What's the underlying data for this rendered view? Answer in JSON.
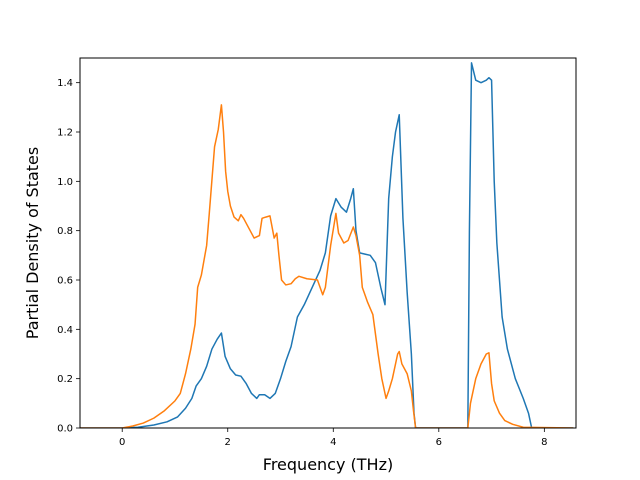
{
  "chart_data": {
    "type": "line",
    "title": "",
    "xlabel": "Frequency (THz)",
    "ylabel": "Partial Density of States",
    "xlim": [
      -0.8,
      8.6
    ],
    "ylim": [
      0.0,
      1.5
    ],
    "xticks": [
      0,
      2,
      4,
      6,
      8
    ],
    "yticks": [
      0.0,
      0.2,
      0.4,
      0.6,
      0.8,
      1.0,
      1.2,
      1.4
    ],
    "grid": false,
    "legend": "none",
    "series": [
      {
        "color": "#1f77b4",
        "x": [
          -0.8,
          0.0,
          0.3,
          0.6,
          0.85,
          1.05,
          1.2,
          1.32,
          1.4,
          1.5,
          1.6,
          1.7,
          1.8,
          1.88,
          1.95,
          2.05,
          2.15,
          2.25,
          2.35,
          2.45,
          2.55,
          2.6,
          2.7,
          2.8,
          2.9,
          3.0,
          3.1,
          3.2,
          3.32,
          3.45,
          3.6,
          3.75,
          3.85,
          3.95,
          4.05,
          4.15,
          4.25,
          4.33,
          4.38,
          4.43,
          4.5,
          4.6,
          4.7,
          4.8,
          4.9,
          4.98,
          5.05,
          5.12,
          5.18,
          5.25,
          5.32,
          5.4,
          5.48,
          5.53,
          5.56,
          6.55,
          6.58,
          6.62,
          6.7,
          6.8,
          6.9,
          6.95,
          7.0,
          7.05,
          7.1,
          7.2,
          7.3,
          7.45,
          7.6,
          7.7,
          7.76,
          8.55
        ],
        "y": [
          0.0,
          0.0,
          0.003,
          0.012,
          0.025,
          0.045,
          0.08,
          0.12,
          0.17,
          0.2,
          0.25,
          0.32,
          0.36,
          0.385,
          0.29,
          0.24,
          0.215,
          0.21,
          0.18,
          0.14,
          0.12,
          0.135,
          0.135,
          0.12,
          0.14,
          0.2,
          0.27,
          0.33,
          0.45,
          0.5,
          0.57,
          0.64,
          0.71,
          0.86,
          0.93,
          0.895,
          0.875,
          0.93,
          0.97,
          0.8,
          0.71,
          0.705,
          0.7,
          0.67,
          0.57,
          0.5,
          0.93,
          1.1,
          1.2,
          1.27,
          0.85,
          0.55,
          0.3,
          0.06,
          0.0,
          0.0,
          0.8,
          1.48,
          1.41,
          1.4,
          1.41,
          1.42,
          1.41,
          1.0,
          0.75,
          0.45,
          0.32,
          0.2,
          0.12,
          0.06,
          0.0,
          0.0
        ]
      },
      {
        "color": "#ff7f0e",
        "x": [
          -0.8,
          0.0,
          0.2,
          0.4,
          0.6,
          0.8,
          1.0,
          1.1,
          1.2,
          1.3,
          1.38,
          1.43,
          1.5,
          1.6,
          1.65,
          1.75,
          1.82,
          1.88,
          1.92,
          1.96,
          2.0,
          2.05,
          2.12,
          2.2,
          2.25,
          2.3,
          2.4,
          2.5,
          2.6,
          2.65,
          2.72,
          2.8,
          2.88,
          2.93,
          2.97,
          3.02,
          3.1,
          3.2,
          3.28,
          3.35,
          3.5,
          3.7,
          3.8,
          3.85,
          3.95,
          4.05,
          4.1,
          4.2,
          4.28,
          4.38,
          4.43,
          4.5,
          4.55,
          4.6,
          4.65,
          4.75,
          4.85,
          4.92,
          5.0,
          5.05,
          5.12,
          5.22,
          5.25,
          5.3,
          5.4,
          5.48,
          5.52,
          5.56,
          6.55,
          6.6,
          6.7,
          6.8,
          6.9,
          6.95,
          7.0,
          7.05,
          7.15,
          7.25,
          7.4,
          7.6,
          8.55
        ],
        "y": [
          0.0,
          0.0,
          0.008,
          0.02,
          0.04,
          0.07,
          0.11,
          0.14,
          0.22,
          0.32,
          0.42,
          0.57,
          0.62,
          0.74,
          0.87,
          1.14,
          1.21,
          1.31,
          1.2,
          1.04,
          0.96,
          0.9,
          0.855,
          0.84,
          0.865,
          0.85,
          0.81,
          0.77,
          0.78,
          0.85,
          0.855,
          0.86,
          0.77,
          0.79,
          0.7,
          0.6,
          0.58,
          0.585,
          0.605,
          0.615,
          0.605,
          0.6,
          0.54,
          0.57,
          0.74,
          0.87,
          0.79,
          0.75,
          0.76,
          0.815,
          0.78,
          0.7,
          0.57,
          0.54,
          0.51,
          0.46,
          0.3,
          0.2,
          0.12,
          0.15,
          0.2,
          0.3,
          0.31,
          0.26,
          0.22,
          0.15,
          0.07,
          0.0,
          0.0,
          0.1,
          0.2,
          0.26,
          0.3,
          0.305,
          0.18,
          0.11,
          0.06,
          0.03,
          0.015,
          0.003,
          0.0
        ]
      }
    ]
  }
}
